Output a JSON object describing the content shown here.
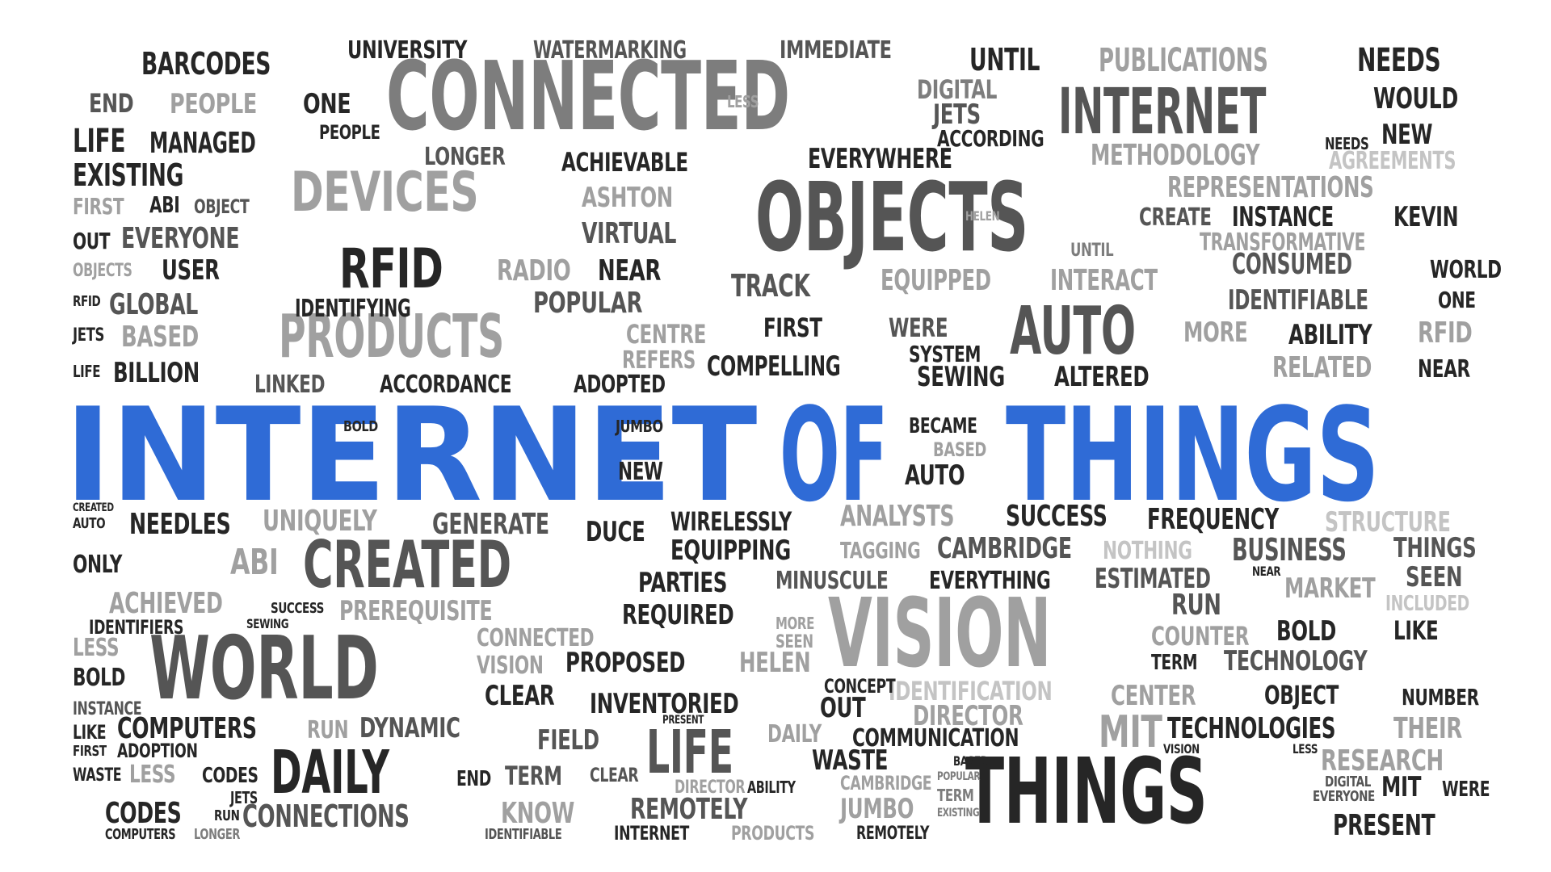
{
  "words": {
    "internet": "INTERNET",
    "of": "OF",
    "things_head": "THINGS",
    "connected": "CONNECTED",
    "objects": "OBJECTS",
    "devices": "DEVICES",
    "products": "PRODUCTS",
    "rfid": "RFID",
    "auto": "AUTO",
    "internet2": "INTERNET",
    "world": "WORLD",
    "vision": "VISION",
    "created": "CREATED",
    "things_big": "THINGS",
    "daily": "DAILY",
    "life": "LIFE",
    "university": "UNIVERSITY",
    "watermarking": "WATERMARKING",
    "immediate": "IMMEDIATE",
    "barcodes": "BARCODES",
    "until": "UNTIL",
    "publications": "PUBLICATIONS",
    "needs": "NEEDS",
    "would": "WOULD",
    "end": "END",
    "people": "PEOPLE",
    "one": "ONE",
    "managed": "MANAGED",
    "life2": "LIFE",
    "achievable": "ACHIEVABLE",
    "everywhere": "EVERYWHERE",
    "longer": "LONGER",
    "methodology": "METHODOLOGY",
    "agreements": "AGREEMENTS",
    "existing": "EXISTING",
    "representations": "REPRESENTATIONS",
    "ashton": "ASHTON",
    "first": "FIRST",
    "abi": "ABI",
    "object": "OBJECT",
    "create": "CREATE",
    "instance": "INSTANCE",
    "kevin": "KEVIN",
    "everyone": "EVERYONE",
    "virtual": "VIRTUAL",
    "transformative": "TRANSFORMATIVE",
    "user": "USER",
    "radio": "RADIO",
    "near": "NEAR",
    "market": "MARKET",
    "consumed": "CONSUMED",
    "world2": "WORLD",
    "global": "GLOBAL",
    "identifying": "IDENTIFYING",
    "popular": "POPULAR",
    "track": "TRACK",
    "equipped": "EQUIPPED",
    "interact": "INTERACT",
    "identifiable": "IDENTIFIABLE",
    "based": "BASED",
    "centre": "CENTRE",
    "first2": "FIRST",
    "were": "WERE",
    "more": "MORE",
    "ability": "ABILITY",
    "rfid2": "RFID",
    "billion": "BILLION",
    "refers": "REFERS",
    "compelling": "COMPELLING",
    "system": "SYSTEM",
    "related": "RELATED",
    "linked": "LINKED",
    "accordance": "ACCORDANCE",
    "adopted": "ADOPTED",
    "sewing": "SEWING",
    "altered": "ALTERED",
    "near2": "NEAR",
    "bold": "BOLD",
    "jumbo": "JUMBO",
    "became": "BECAME",
    "new": "NEW",
    "auto2": "AUTO",
    "uniquely": "UNIQUELY",
    "generate": "GENERATE",
    "duce": "DUCE",
    "wirelessly": "WIRELESSLY",
    "analysts": "ANALYSTS",
    "success": "SUCCESS",
    "frequency": "FREQUENCY",
    "structure": "STRUCTURE",
    "needles": "NEEDLES",
    "equipping": "EQUIPPING",
    "tagging": "TAGGING",
    "cambridge": "CAMBRIDGE",
    "nothing": "NOTHING",
    "business": "BUSINESS",
    "things_r": "THINGS",
    "only": "ONLY",
    "parties": "PARTIES",
    "minuscule": "MINUSCULE",
    "everything": "EVERYTHING",
    "estimated": "ESTIMATED",
    "seen": "SEEN",
    "achieved": "ACHIEVED",
    "prerequisite": "PREREQUISITE",
    "required": "REQUIRED",
    "run": "RUN",
    "included": "INCLUDED",
    "identifiers": "IDENTIFIERS",
    "less": "LESS",
    "connected2": "CONNECTED",
    "counter": "COUNTER",
    "like": "LIKE",
    "proposed": "PROPOSED",
    "helen": "HELEN",
    "term": "TERM",
    "technology": "TECHNOLOGY",
    "clear": "CLEAR",
    "identification": "IDENTIFICATION",
    "center": "CENTER",
    "number": "NUMBER",
    "inventoried": "INVENTORIED",
    "director": "DIRECTOR",
    "computers": "COMPUTERS",
    "dynamic": "DYNAMIC",
    "technologies": "TECHNOLOGIES",
    "their": "THEIR",
    "field": "FIELD",
    "communication": "COMMUNICATION",
    "adoption": "ADOPTION",
    "research": "RESEARCH",
    "waste": "WASTE",
    "codes": "CODES",
    "connections": "CONNECTIONS",
    "know": "KNOW",
    "remotely": "REMOTELY",
    "jumbo2": "JUMBO",
    "present": "PRESENT",
    "mit": "MIT",
    "digital": "DIGITAL",
    "jets": "JETS",
    "according": "ACCORDING",
    "out": "OUT",
    "concept": "CONCEPT",
    "identifiable2": "IDENTIFIABLE",
    "internet3": "INTERNET",
    "products2": "PRODUCTS",
    "remotely2": "REMOTELY",
    "codes2": "CODES",
    "computers2": "COMPUTERS",
    "longer2": "LONGER",
    "less2": "LESS",
    "bold2": "BOLD",
    "like2": "LIKE",
    "waste2": "WASTE",
    "cambridge2": "CAMBRIDGE",
    "everyone2": "EVERYONE",
    "helen2": "HELEN",
    "near3": "NEAR",
    "sewing2": "SEWING",
    "run2": "RUN",
    "present2": "PRESENT"
  }
}
